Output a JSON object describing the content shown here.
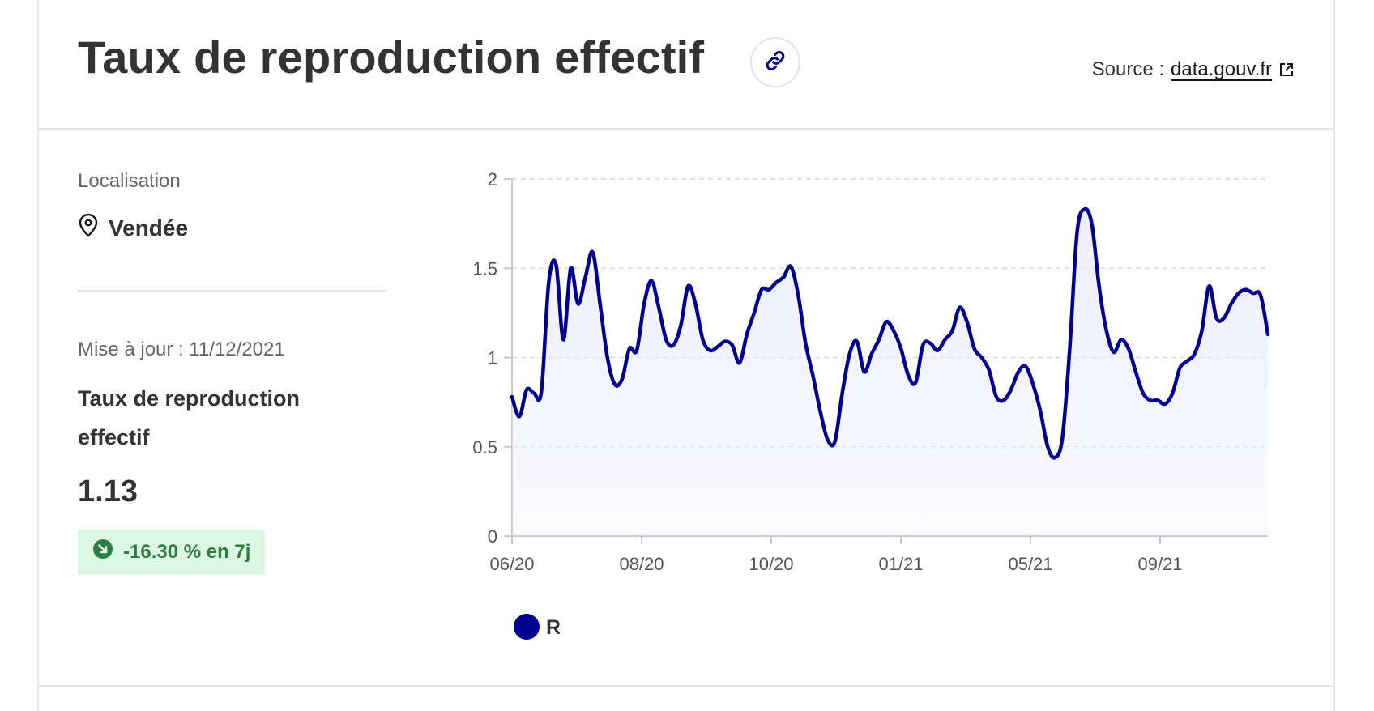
{
  "header": {
    "title": "Taux de reproduction effectif",
    "source_label": "Source :",
    "source_link": "data.gouv.fr"
  },
  "sidebar": {
    "location_label": "Localisation",
    "location_value": "Vendée",
    "updated": "Mise à jour : 11/12/2021",
    "indicator_name": "Taux de reproduction effectif",
    "indicator_value": "1.13",
    "variation": "-16.30 % en 7j"
  },
  "colors": {
    "line": "#000091",
    "area": "#ececfe",
    "positive_badge_bg": "#dcf7e2",
    "positive_badge_text": "#2f7d44"
  },
  "icons": {
    "link": "link-icon",
    "external": "external-link-icon",
    "location": "map-pin-icon",
    "trend": "arrow-down-right-icon"
  },
  "chart_data": {
    "type": "area",
    "title": "",
    "xlabel": "",
    "ylabel": "",
    "ylim": [
      0,
      2
    ],
    "yticks": [
      "0",
      "0.5",
      "1",
      "1.5",
      "2"
    ],
    "xticks": [
      "06/20",
      "08/20",
      "10/20",
      "01/21",
      "05/21",
      "09/21"
    ],
    "grid": true,
    "legend_position": "bottom-left",
    "series": [
      {
        "name": "R",
        "values": [
          0.78,
          0.67,
          0.82,
          0.8,
          0.81,
          1.42,
          1.52,
          1.1,
          1.5,
          1.3,
          1.45,
          1.59,
          1.3,
          1.0,
          0.85,
          0.88,
          1.05,
          1.04,
          1.3,
          1.43,
          1.28,
          1.1,
          1.07,
          1.18,
          1.4,
          1.3,
          1.1,
          1.04,
          1.06,
          1.09,
          1.07,
          0.97,
          1.13,
          1.25,
          1.38,
          1.38,
          1.42,
          1.45,
          1.51,
          1.35,
          1.08,
          0.9,
          0.7,
          0.54,
          0.53,
          0.8,
          1.02,
          1.09,
          0.92,
          1.02,
          1.1,
          1.2,
          1.15,
          1.05,
          0.9,
          0.86,
          1.07,
          1.08,
          1.04,
          1.1,
          1.15,
          1.28,
          1.2,
          1.05,
          1.0,
          0.93,
          0.78,
          0.76,
          0.82,
          0.92,
          0.95,
          0.85,
          0.7,
          0.5,
          0.44,
          0.55,
          1.05,
          1.7,
          1.83,
          1.75,
          1.4,
          1.15,
          1.03,
          1.1,
          1.05,
          0.92,
          0.8,
          0.76,
          0.76,
          0.74,
          0.8,
          0.94,
          0.98,
          1.02,
          1.15,
          1.4,
          1.22,
          1.22,
          1.3,
          1.36,
          1.38,
          1.36,
          1.35,
          1.13
        ]
      }
    ]
  }
}
